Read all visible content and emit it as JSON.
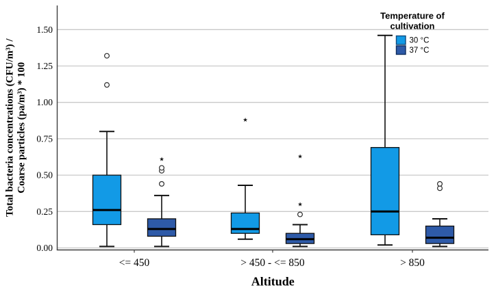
{
  "figure": {
    "background": "#ffffff",
    "grid_color": "#c9c9c9",
    "axis_color": "#3f3f3f",
    "box_stroke": "#101010",
    "text_color": "#000000"
  },
  "legend": {
    "title_lines": [
      "Temperature of",
      "cultivation"
    ],
    "entries": [
      {
        "label": "30 °C",
        "color": "#129ae6",
        "border": "#0f4a7e"
      },
      {
        "label": "37 °C",
        "color": "#2e5aa8",
        "border": "#0f2d5c"
      }
    ]
  },
  "chart_data": {
    "type": "boxplot",
    "title": "",
    "xlabel": "Altitude",
    "ylabel_lines": [
      "Total bacteria concentrations (CFU/m³) /",
      "Coarse particles (pa/m³) * 100"
    ],
    "ylabel": "Total bacteria concentrations (CFU/m³) / Coarse particles (pa/m³) * 100",
    "legend_title": "Temperature of cultivation",
    "ylim": [
      0.0,
      1.58
    ],
    "grid": true,
    "legend_position": "top-right",
    "y_ticks": [
      0.0,
      0.25,
      0.5,
      0.75,
      1.0,
      1.25,
      1.5
    ],
    "y_tick_labels": [
      "0.00",
      "0.25",
      "0.50",
      "0.75",
      "1.00",
      "1.25",
      "1.50"
    ],
    "categories": [
      "<= 450",
      "> 450 - <= 850",
      "> 850"
    ],
    "series": [
      {
        "name": "30 °C",
        "color": "#129ae6",
        "boxes": [
          {
            "whisker_low": 0.01,
            "q1": 0.16,
            "median": 0.26,
            "q3": 0.5,
            "whisker_high": 0.8,
            "outliers_circle": [
              1.12,
              1.32
            ],
            "outliers_star": []
          },
          {
            "whisker_low": 0.06,
            "q1": 0.1,
            "median": 0.13,
            "q3": 0.24,
            "whisker_high": 0.43,
            "outliers_circle": [],
            "outliers_star": [
              0.88
            ]
          },
          {
            "whisker_low": 0.02,
            "q1": 0.09,
            "median": 0.25,
            "q3": 0.69,
            "whisker_high": 1.46,
            "outliers_circle": [],
            "outliers_star": []
          }
        ]
      },
      {
        "name": "37 °C",
        "color": "#2e5aa8",
        "boxes": [
          {
            "whisker_low": 0.01,
            "q1": 0.08,
            "median": 0.13,
            "q3": 0.2,
            "whisker_high": 0.36,
            "outliers_circle": [
              0.44,
              0.53,
              0.55
            ],
            "outliers_star": [
              0.61
            ]
          },
          {
            "whisker_low": 0.01,
            "q1": 0.03,
            "median": 0.06,
            "q3": 0.1,
            "whisker_high": 0.16,
            "outliers_circle": [
              0.23
            ],
            "outliers_star": [
              0.3,
              0.63
            ]
          },
          {
            "whisker_low": 0.01,
            "q1": 0.03,
            "median": 0.07,
            "q3": 0.15,
            "whisker_high": 0.2,
            "outliers_circle": [
              0.41,
              0.44
            ],
            "outliers_star": []
          }
        ]
      }
    ]
  }
}
